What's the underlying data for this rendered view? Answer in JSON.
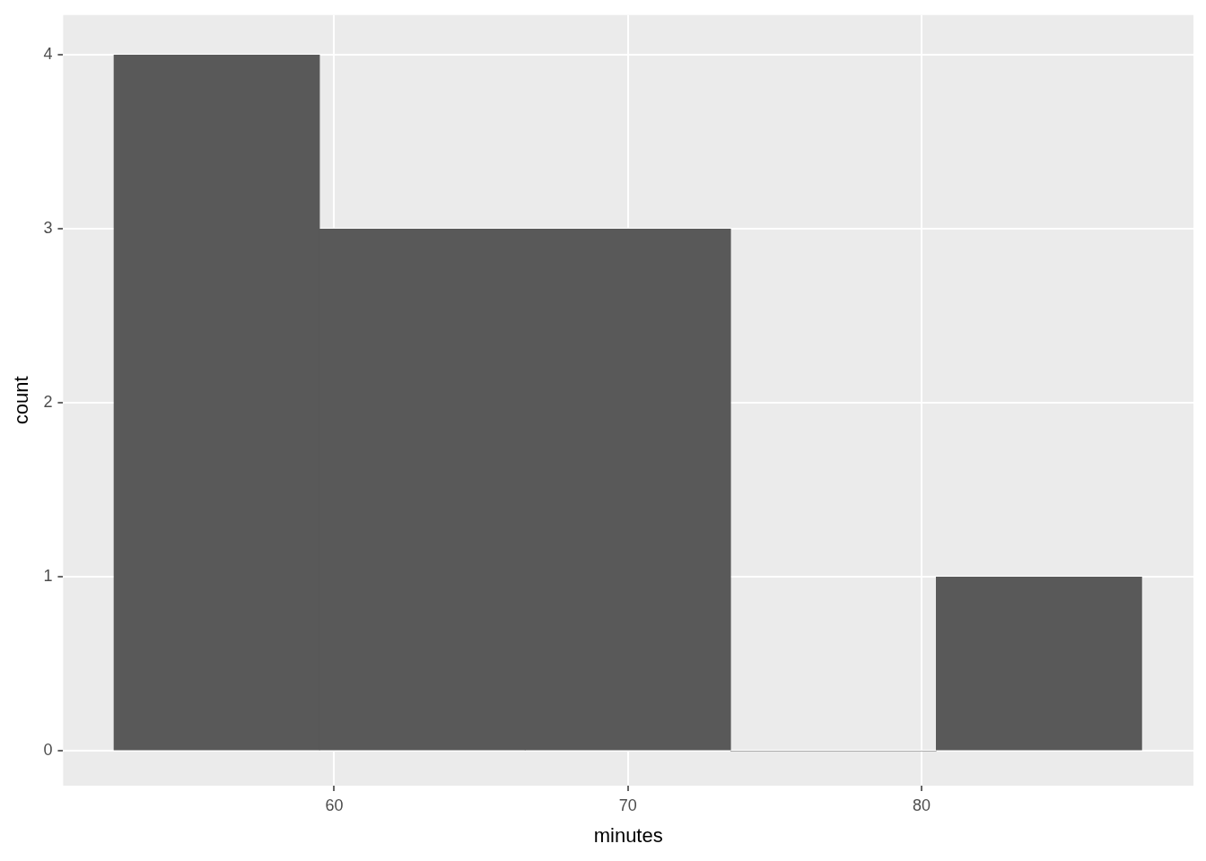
{
  "chart_data": {
    "type": "histogram",
    "xlabel": "minutes",
    "ylabel": "count",
    "bins": [
      52.5,
      59.5,
      66.5,
      73.5,
      80.5,
      87.5
    ],
    "values": [
      4,
      3,
      3,
      0,
      1
    ],
    "color": "#595959",
    "xlim": [
      50.77,
      89.26
    ],
    "xticks": [
      60,
      70,
      80
    ],
    "ylim": [
      -0.2,
      4.23
    ],
    "yticks": [
      0,
      1,
      2,
      3,
      4
    ],
    "grid": true,
    "legend": false
  }
}
